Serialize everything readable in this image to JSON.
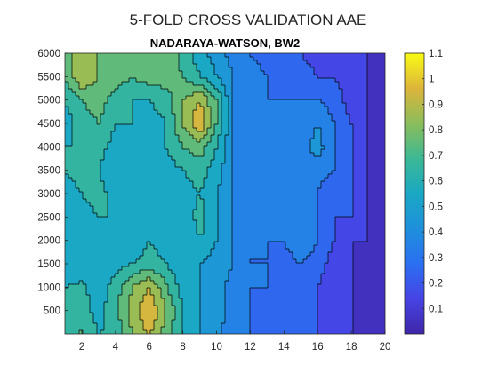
{
  "figure": {
    "title": "5-FOLD CROSS VALIDATION AAE",
    "subtitle": "NADARAYA-WATSON, BW2"
  },
  "chart_data": {
    "type": "heatmap",
    "style": "filled-contour",
    "title": "5-FOLD CROSS VALIDATION AAE",
    "subtitle": "NADARAYA-WATSON, BW2",
    "xlabel": "",
    "ylabel": "",
    "xlim": [
      1,
      20
    ],
    "ylim": [
      0,
      6000
    ],
    "x_ticks": [
      2,
      4,
      6,
      8,
      10,
      12,
      14,
      16,
      18,
      20
    ],
    "y_ticks": [
      500,
      1000,
      1500,
      2000,
      2500,
      3000,
      3500,
      4000,
      4500,
      5000,
      5500,
      6000
    ],
    "colorbar": {
      "colormap": "parula",
      "range": [
        0,
        1.1
      ],
      "ticks": [
        0.1,
        0.2,
        0.3,
        0.4,
        0.5,
        0.6,
        0.7,
        0.8,
        0.9,
        1,
        1.1
      ],
      "placement": "right"
    },
    "contour_levels": [
      0.1,
      0.2,
      0.3,
      0.4,
      0.5,
      0.6,
      0.7,
      0.8,
      0.9,
      1.0
    ],
    "grid_x": [
      1,
      2,
      3,
      4,
      5,
      6,
      7,
      8,
      9,
      10,
      11,
      12,
      13,
      14,
      15,
      16,
      17,
      18,
      19,
      20
    ],
    "grid_y": [
      0,
      500,
      1000,
      1500,
      2000,
      2500,
      3000,
      3500,
      4000,
      4500,
      5000,
      5500,
      6000
    ],
    "z": [
      [
        0.6,
        0.72,
        0.6,
        0.62,
        0.8,
        0.92,
        0.75,
        0.6,
        0.5,
        0.45,
        0.3,
        0.3,
        0.3,
        0.25,
        0.25,
        0.2,
        0.1,
        0.1,
        0.05,
        0.05
      ],
      [
        0.7,
        0.65,
        0.55,
        0.68,
        0.85,
        1.0,
        0.8,
        0.6,
        0.5,
        0.45,
        0.35,
        0.3,
        0.28,
        0.25,
        0.3,
        0.2,
        0.1,
        0.1,
        0.05,
        0.05
      ],
      [
        0.6,
        0.62,
        0.55,
        0.65,
        0.8,
        0.9,
        0.72,
        0.55,
        0.5,
        0.45,
        0.35,
        0.3,
        0.3,
        0.3,
        0.3,
        0.2,
        0.12,
        0.1,
        0.05,
        0.05
      ],
      [
        0.5,
        0.55,
        0.5,
        0.55,
        0.6,
        0.65,
        0.6,
        0.5,
        0.5,
        0.45,
        0.4,
        0.3,
        0.3,
        0.25,
        0.3,
        0.25,
        0.15,
        0.1,
        0.05,
        0.05
      ],
      [
        0.55,
        0.5,
        0.6,
        0.55,
        0.5,
        0.6,
        0.55,
        0.5,
        0.6,
        0.5,
        0.4,
        0.3,
        0.3,
        0.3,
        0.4,
        0.3,
        0.2,
        0.1,
        0.1,
        0.05
      ],
      [
        0.5,
        0.55,
        0.6,
        0.6,
        0.55,
        0.55,
        0.55,
        0.5,
        0.65,
        0.5,
        0.4,
        0.3,
        0.35,
        0.3,
        0.4,
        0.3,
        0.2,
        0.2,
        0.1,
        0.05
      ],
      [
        0.55,
        0.6,
        0.65,
        0.55,
        0.5,
        0.5,
        0.5,
        0.55,
        0.6,
        0.5,
        0.4,
        0.3,
        0.3,
        0.3,
        0.3,
        0.3,
        0.2,
        0.2,
        0.1,
        0.05
      ],
      [
        0.6,
        0.65,
        0.6,
        0.5,
        0.5,
        0.55,
        0.55,
        0.6,
        0.65,
        0.55,
        0.4,
        0.3,
        0.35,
        0.3,
        0.35,
        0.35,
        0.3,
        0.2,
        0.1,
        0.05
      ],
      [
        0.6,
        0.6,
        0.65,
        0.55,
        0.6,
        0.55,
        0.6,
        0.7,
        0.75,
        0.6,
        0.4,
        0.3,
        0.35,
        0.3,
        0.35,
        0.45,
        0.3,
        0.2,
        0.1,
        0.05
      ],
      [
        0.55,
        0.65,
        0.7,
        0.6,
        0.6,
        0.55,
        0.6,
        0.8,
        1.0,
        0.7,
        0.4,
        0.3,
        0.35,
        0.3,
        0.3,
        0.4,
        0.3,
        0.2,
        0.1,
        0.05
      ],
      [
        0.6,
        0.7,
        0.75,
        0.65,
        0.6,
        0.6,
        0.65,
        0.8,
        0.9,
        0.7,
        0.4,
        0.35,
        0.3,
        0.3,
        0.3,
        0.3,
        0.25,
        0.15,
        0.1,
        0.05
      ],
      [
        0.7,
        0.9,
        0.8,
        0.75,
        0.7,
        0.75,
        0.75,
        0.7,
        0.6,
        0.5,
        0.4,
        0.35,
        0.3,
        0.25,
        0.25,
        0.2,
        0.2,
        0.15,
        0.1,
        0.05
      ],
      [
        0.75,
        0.85,
        0.8,
        0.75,
        0.7,
        0.8,
        0.8,
        0.65,
        0.55,
        0.45,
        0.35,
        0.3,
        0.25,
        0.2,
        0.2,
        0.15,
        0.15,
        0.1,
        0.1,
        0.05
      ]
    ]
  }
}
